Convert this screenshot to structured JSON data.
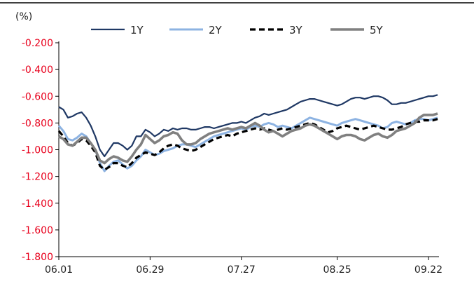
{
  "chart_data": {
    "type": "line",
    "ylabel": "(%)",
    "ylim": [
      -1.8,
      -0.2
    ],
    "y_ticks": [
      "-0.200",
      "-0.400",
      "-0.600",
      "-0.800",
      "-1.000",
      "-1.200",
      "-1.400",
      "-1.600",
      "-1.800"
    ],
    "y_tick_values": [
      -0.2,
      -0.4,
      -0.6,
      -0.8,
      -1.0,
      -1.2,
      -1.4,
      -1.6,
      -1.8
    ],
    "x_ticks": [
      "06.01",
      "06.29",
      "07.27",
      "08.25",
      "09.22"
    ],
    "x_tick_index": [
      0,
      20,
      40,
      61,
      81
    ],
    "grid": false,
    "legend_position": "top",
    "series": [
      {
        "name": "1Y",
        "color": "#1f3864",
        "dash": "solid",
        "values": [
          -0.68,
          -0.7,
          -0.76,
          -0.75,
          -0.73,
          -0.72,
          -0.76,
          -0.82,
          -0.9,
          -1.0,
          -1.05,
          -1.0,
          -0.95,
          -0.95,
          -0.97,
          -1.0,
          -0.97,
          -0.9,
          -0.9,
          -0.85,
          -0.87,
          -0.9,
          -0.88,
          -0.85,
          -0.86,
          -0.84,
          -0.85,
          -0.84,
          -0.84,
          -0.85,
          -0.85,
          -0.84,
          -0.83,
          -0.83,
          -0.84,
          -0.83,
          -0.82,
          -0.81,
          -0.8,
          -0.8,
          -0.79,
          -0.8,
          -0.78,
          -0.76,
          -0.75,
          -0.73,
          -0.74,
          -0.73,
          -0.72,
          -0.71,
          -0.7,
          -0.68,
          -0.66,
          -0.64,
          -0.63,
          -0.62,
          -0.62,
          -0.63,
          -0.64,
          -0.65,
          -0.66,
          -0.67,
          -0.66,
          -0.64,
          -0.62,
          -0.61,
          -0.61,
          -0.62,
          -0.61,
          -0.6,
          -0.6,
          -0.61,
          -0.63,
          -0.66,
          -0.66,
          -0.65,
          -0.65,
          -0.64,
          -0.63,
          -0.62,
          -0.61,
          -0.6,
          -0.6,
          -0.59
        ]
      },
      {
        "name": "2Y",
        "color": "#8db3e2",
        "dash": "solid",
        "values": [
          -0.82,
          -0.86,
          -0.92,
          -0.93,
          -0.91,
          -0.88,
          -0.9,
          -0.95,
          -1.0,
          -1.1,
          -1.16,
          -1.12,
          -1.09,
          -1.08,
          -1.11,
          -1.14,
          -1.12,
          -1.08,
          -1.05,
          -1.0,
          -1.02,
          -1.04,
          -1.03,
          -1.01,
          -1.0,
          -0.99,
          -0.97,
          -0.96,
          -0.96,
          -0.97,
          -0.98,
          -0.96,
          -0.94,
          -0.92,
          -0.9,
          -0.89,
          -0.88,
          -0.87,
          -0.86,
          -0.85,
          -0.84,
          -0.85,
          -0.83,
          -0.82,
          -0.83,
          -0.81,
          -0.8,
          -0.81,
          -0.83,
          -0.82,
          -0.83,
          -0.84,
          -0.82,
          -0.8,
          -0.78,
          -0.76,
          -0.77,
          -0.78,
          -0.79,
          -0.8,
          -0.81,
          -0.82,
          -0.8,
          -0.79,
          -0.78,
          -0.77,
          -0.78,
          -0.79,
          -0.8,
          -0.81,
          -0.82,
          -0.84,
          -0.83,
          -0.8,
          -0.79,
          -0.8,
          -0.81,
          -0.8,
          -0.78,
          -0.77,
          -0.77,
          -0.78,
          -0.77,
          -0.76
        ]
      },
      {
        "name": "3Y",
        "color": "#000000",
        "dash": "dash",
        "values": [
          -0.86,
          -0.9,
          -0.95,
          -0.97,
          -0.95,
          -0.92,
          -0.93,
          -0.97,
          -1.02,
          -1.12,
          -1.15,
          -1.13,
          -1.1,
          -1.1,
          -1.12,
          -1.13,
          -1.1,
          -1.06,
          -1.04,
          -1.02,
          -1.03,
          -1.04,
          -1.02,
          -0.99,
          -0.97,
          -0.96,
          -0.97,
          -0.99,
          -1.0,
          -1.01,
          -1.0,
          -0.98,
          -0.96,
          -0.94,
          -0.92,
          -0.91,
          -0.9,
          -0.89,
          -0.9,
          -0.88,
          -0.87,
          -0.86,
          -0.85,
          -0.84,
          -0.85,
          -0.84,
          -0.85,
          -0.86,
          -0.85,
          -0.84,
          -0.85,
          -0.84,
          -0.83,
          -0.82,
          -0.81,
          -0.8,
          -0.81,
          -0.83,
          -0.85,
          -0.87,
          -0.86,
          -0.84,
          -0.83,
          -0.82,
          -0.83,
          -0.84,
          -0.85,
          -0.84,
          -0.83,
          -0.82,
          -0.83,
          -0.84,
          -0.85,
          -0.85,
          -0.84,
          -0.83,
          -0.81,
          -0.8,
          -0.79,
          -0.79,
          -0.78,
          -0.78,
          -0.78,
          -0.77
        ]
      },
      {
        "name": "5Y",
        "color": "#808080",
        "dash": "solid",
        "values": [
          -0.9,
          -0.92,
          -0.96,
          -0.97,
          -0.94,
          -0.91,
          -0.91,
          -0.95,
          -1.0,
          -1.08,
          -1.1,
          -1.07,
          -1.05,
          -1.06,
          -1.08,
          -1.09,
          -1.05,
          -1.0,
          -0.96,
          -0.89,
          -0.92,
          -0.95,
          -0.93,
          -0.9,
          -0.89,
          -0.87,
          -0.88,
          -0.93,
          -0.96,
          -0.96,
          -0.95,
          -0.92,
          -0.9,
          -0.88,
          -0.87,
          -0.86,
          -0.85,
          -0.84,
          -0.85,
          -0.84,
          -0.83,
          -0.84,
          -0.82,
          -0.8,
          -0.82,
          -0.85,
          -0.87,
          -0.86,
          -0.88,
          -0.9,
          -0.88,
          -0.86,
          -0.85,
          -0.84,
          -0.82,
          -0.81,
          -0.82,
          -0.84,
          -0.86,
          -0.88,
          -0.9,
          -0.92,
          -0.9,
          -0.89,
          -0.89,
          -0.9,
          -0.92,
          -0.93,
          -0.91,
          -0.89,
          -0.88,
          -0.9,
          -0.91,
          -0.89,
          -0.86,
          -0.85,
          -0.84,
          -0.82,
          -0.8,
          -0.76,
          -0.74,
          -0.74,
          -0.74,
          -0.73
        ]
      }
    ]
  }
}
